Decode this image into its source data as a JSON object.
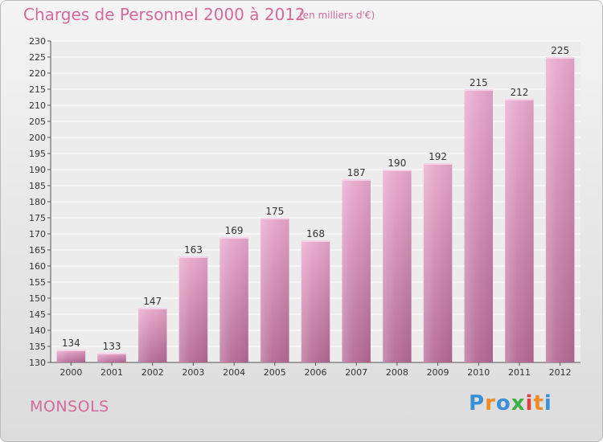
{
  "header": {
    "title": "Charges de Personnel 2000 à 2012",
    "subtitle": "(en milliers d'€)"
  },
  "footer": {
    "commune": "MONSOLS",
    "logo_text": "Proxiti",
    "logo_letters": [
      {
        "ch": "P",
        "color": "#3a8fd6"
      },
      {
        "ch": "r",
        "color": "#f08a24"
      },
      {
        "ch": "o",
        "color": "#3a8fd6"
      },
      {
        "ch": "x",
        "color": "#3fae49"
      },
      {
        "ch": "i",
        "color": "#e23f3f"
      },
      {
        "ch": "t",
        "color": "#f08a24"
      },
      {
        "ch": "i",
        "color": "#3a8fd6"
      }
    ]
  },
  "colors": {
    "bar_top": "#e8a8cc",
    "bar_bottom": "#b46a94",
    "accent": "#d36a9a"
  },
  "chart_data": {
    "type": "bar",
    "title": "Charges de Personnel 2000 à 2012",
    "subtitle": "(en milliers d'€)",
    "categories": [
      "2000",
      "2001",
      "2002",
      "2003",
      "2004",
      "2005",
      "2006",
      "2007",
      "2008",
      "2009",
      "2010",
      "2011",
      "2012"
    ],
    "values": [
      134,
      133,
      147,
      163,
      169,
      175,
      168,
      187,
      190,
      192,
      215,
      212,
      225
    ],
    "ylim": [
      130,
      230
    ],
    "yticks": [
      130,
      135,
      140,
      145,
      150,
      155,
      160,
      165,
      170,
      175,
      180,
      185,
      190,
      195,
      200,
      205,
      210,
      215,
      220,
      225,
      230
    ],
    "grid": true,
    "data_labels": true
  }
}
